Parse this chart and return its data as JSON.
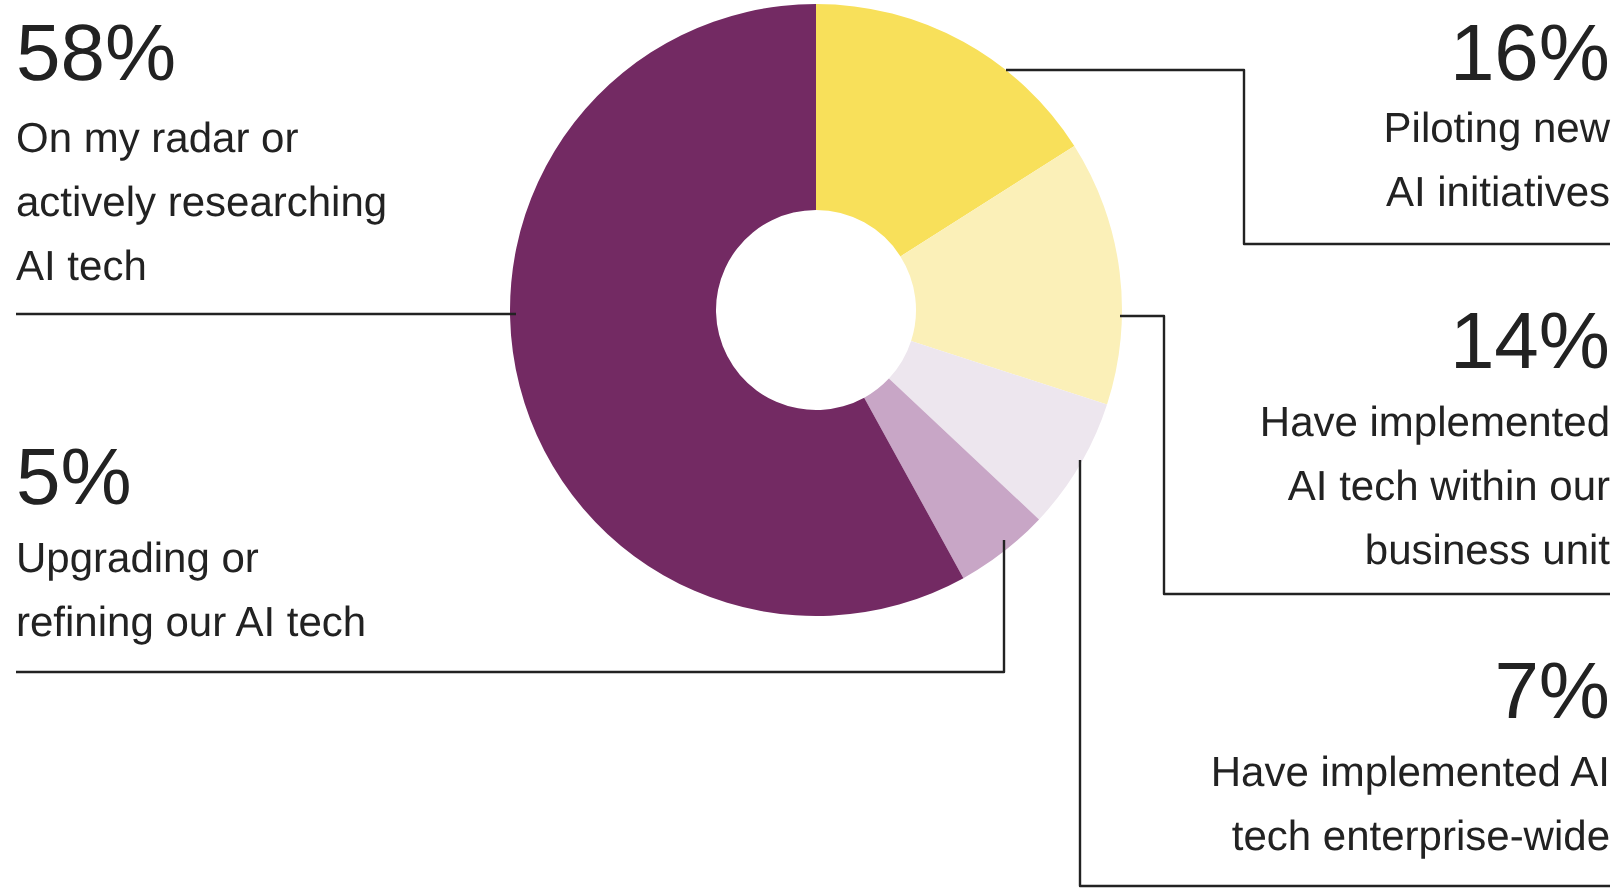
{
  "chart_data": {
    "type": "donut",
    "categories": [
      "Piloting new AI initiatives",
      "Have implemented AI tech within our business unit",
      "Have implemented AI tech enterprise-wide",
      "Upgrading or refining our AI tech",
      "On my radar or actively researching AI tech"
    ],
    "values": [
      16,
      14,
      7,
      5,
      58
    ],
    "value_labels": [
      "16%",
      "14%",
      "7%",
      "5%",
      "58%"
    ],
    "colors": [
      "#f8e05a",
      "#fbf0b8",
      "#ede6ee",
      "#c8a6c6",
      "#732a63"
    ]
  }
}
